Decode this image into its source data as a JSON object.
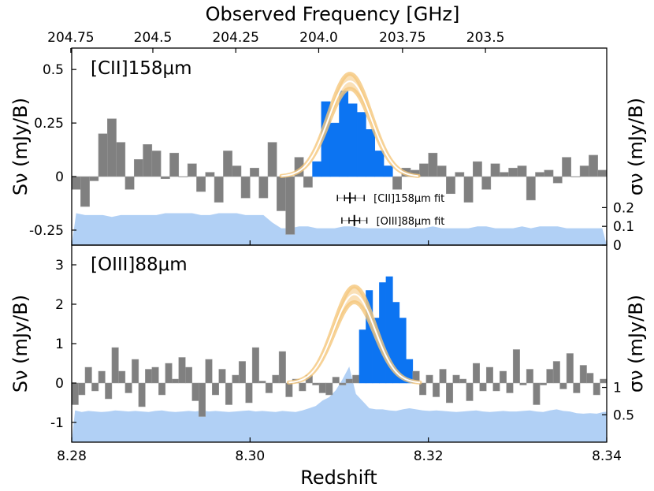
{
  "chart_data": {
    "type": "bar",
    "x_axis": {
      "label": "Redshift",
      "range": [
        8.28,
        8.34
      ],
      "ticks": [
        8.28,
        8.3,
        8.32,
        8.34
      ],
      "tick_labels": [
        "8.28",
        "8.30",
        "8.32",
        "8.34"
      ]
    },
    "top_axis": {
      "label": "Observed Frequency [GHz]",
      "tick_redshifts": [
        8.2836,
        8.2882,
        8.2929,
        8.2975,
        8.3022,
        8.3069,
        8.3116
      ],
      "tick_labels": [
        "204.75",
        "204.5",
        "204.25",
        "204.0",
        "203.75",
        "203.5"
      ],
      "tick_redshift_list": [
        8.2799,
        8.2891,
        8.2984,
        8.3077,
        8.3171,
        8.3264
      ]
    },
    "colors": {
      "bar_gray": "#808080",
      "bar_line": "#9a9a9a",
      "bar_blue": "#0c74f2",
      "noise_fill": "#b1d0f5",
      "fit_band": "#f5c77c",
      "fit_line": "#ffffff",
      "axis": "#000000"
    },
    "panels": [
      {
        "id": "cii",
        "title": "[CII]158μm",
        "ylabel": "Sν (mJy/B)",
        "ylabel_right": "σν (mJy/B)",
        "flux_ylim": [
          -0.32,
          0.6
        ],
        "flux_ticks": [
          -0.25,
          0,
          0.25,
          0.5
        ],
        "flux_tick_labels": [
          "-0.25",
          "0",
          "0.25",
          "0.5"
        ],
        "sigma_ylim": [
          0,
          1.05
        ],
        "sigma_ticks": [
          0,
          0.1,
          0.2
        ],
        "sigma_tick_labels": [
          "0",
          "0.1",
          "0.2"
        ],
        "x_start": 8.28,
        "bin_width": 0.001,
        "blue_bins": [
          27,
          28,
          29,
          30,
          31,
          32,
          33,
          34,
          35
        ],
        "flux": [
          -0.06,
          -0.14,
          -0.02,
          0.2,
          0.27,
          0.16,
          -0.06,
          0.08,
          0.15,
          0.12,
          -0.01,
          0.11,
          0.0,
          0.06,
          -0.07,
          0.02,
          -0.12,
          0.12,
          0.05,
          -0.1,
          0.04,
          -0.1,
          0.16,
          -0.16,
          -0.27,
          0.09,
          -0.05,
          0.07,
          0.35,
          0.25,
          0.4,
          0.34,
          0.3,
          0.22,
          0.12,
          0.05,
          -0.06,
          0.04,
          0.03,
          0.06,
          0.11,
          0.05,
          -0.08,
          0.02,
          -0.12,
          0.07,
          -0.06,
          0.06,
          0.02,
          0.04,
          0.05,
          -0.11,
          0.02,
          0.03,
          -0.03,
          0.09,
          0.0,
          0.05,
          0.1,
          0.03
        ],
        "sigma": [
          0.17,
          0.16,
          0.16,
          0.16,
          0.15,
          0.16,
          0.16,
          0.16,
          0.16,
          0.16,
          0.17,
          0.17,
          0.17,
          0.17,
          0.16,
          0.16,
          0.17,
          0.17,
          0.17,
          0.16,
          0.16,
          0.16,
          0.12,
          0.09,
          0.09,
          0.1,
          0.1,
          0.09,
          0.09,
          0.09,
          0.1,
          0.1,
          0.09,
          0.09,
          0.09,
          0.09,
          0.09,
          0.09,
          0.09,
          0.09,
          0.1,
          0.09,
          0.09,
          0.09,
          0.09,
          0.1,
          0.1,
          0.09,
          0.09,
          0.09,
          0.1,
          0.09,
          0.1,
          0.1,
          0.1,
          0.09,
          0.09,
          0.09,
          0.09,
          0.09
        ],
        "fit": {
          "amplitude": 0.445,
          "center": 8.3112,
          "sigma": 0.0024,
          "band": 0.035
        },
        "legend": [
          {
            "label": "[CII]158μm fit",
            "center": 8.3112,
            "inner": [
              8.3106,
              8.3118
            ],
            "outer": [
              8.3098,
              8.3128
            ],
            "flux": -0.1
          },
          {
            "label": "[OIII]88μm fit",
            "center": 8.3117,
            "inner": [
              8.3111,
              8.3123
            ],
            "outer": [
              8.3103,
              8.3131
            ],
            "flux": -0.205
          }
        ]
      },
      {
        "id": "oiii",
        "title": "[OIII]88μm",
        "ylabel": "Sν (mJy/B)",
        "ylabel_right": "σν (mJy/B)",
        "flux_ylim": [
          -1.5,
          3.5
        ],
        "flux_ticks": [
          -1,
          0,
          1,
          2,
          3
        ],
        "flux_tick_labels": [
          "-1",
          "0",
          "1",
          "2",
          "3"
        ],
        "sigma_ylim": [
          0,
          3.6
        ],
        "sigma_ticks": [
          0.5,
          1.0
        ],
        "sigma_tick_labels": [
          "0.5",
          "1"
        ],
        "x_start": 8.28,
        "bin_width": 0.00075,
        "blue_bins": [
          43,
          44,
          45,
          46,
          47,
          48,
          49,
          50
        ],
        "flux": [
          -0.55,
          -0.3,
          0.4,
          -0.2,
          0.3,
          -0.4,
          0.9,
          0.3,
          -0.25,
          0.6,
          -0.6,
          0.35,
          0.4,
          -0.3,
          0.5,
          0.1,
          0.65,
          0.4,
          -0.45,
          -0.85,
          0.6,
          -0.3,
          0.35,
          -0.55,
          0.2,
          0.55,
          -0.5,
          0.9,
          0.05,
          -0.25,
          0.2,
          0.8,
          -0.35,
          0.1,
          -0.2,
          0.2,
          -0.05,
          -0.25,
          -0.3,
          0.15,
          -0.05,
          0.1,
          0.2,
          1.35,
          2.35,
          1.65,
          2.55,
          2.7,
          2.05,
          1.65,
          0.6,
          0.3,
          -0.3,
          0.2,
          -0.35,
          0.35,
          -0.5,
          0.2,
          0.1,
          -0.45,
          0.5,
          -0.2,
          0.4,
          -0.2,
          0.3,
          -0.25,
          0.85,
          -0.05,
          0.35,
          -0.55,
          -0.05,
          0.35,
          0.55,
          -0.15,
          0.75,
          -0.25,
          0.45,
          0.25,
          -0.3,
          0.1,
          -0.05
        ],
        "sigma": [
          0.58,
          0.55,
          0.57,
          0.56,
          0.55,
          0.56,
          0.58,
          0.57,
          0.56,
          0.57,
          0.56,
          0.55,
          0.57,
          0.58,
          0.56,
          0.55,
          0.56,
          0.57,
          0.56,
          0.58,
          0.56,
          0.57,
          0.56,
          0.55,
          0.56,
          0.57,
          0.58,
          0.56,
          0.57,
          0.56,
          0.55,
          0.57,
          0.56,
          0.55,
          0.58,
          0.62,
          0.66,
          0.76,
          0.82,
          0.95,
          1.15,
          1.38,
          0.88,
          0.75,
          0.62,
          0.6,
          0.6,
          0.58,
          0.57,
          0.6,
          0.62,
          0.6,
          0.58,
          0.57,
          0.58,
          0.57,
          0.56,
          0.55,
          0.56,
          0.57,
          0.58,
          0.56,
          0.55,
          0.56,
          0.57,
          0.56,
          0.56,
          0.57,
          0.58,
          0.56,
          0.55,
          0.58,
          0.6,
          0.57,
          0.56,
          0.53,
          0.52,
          0.53,
          0.52,
          0.55,
          0.56
        ],
        "fit": {
          "amplitude": 2.25,
          "center": 8.3117,
          "sigma": 0.0023,
          "band": 0.2
        },
        "legend": []
      }
    ]
  }
}
